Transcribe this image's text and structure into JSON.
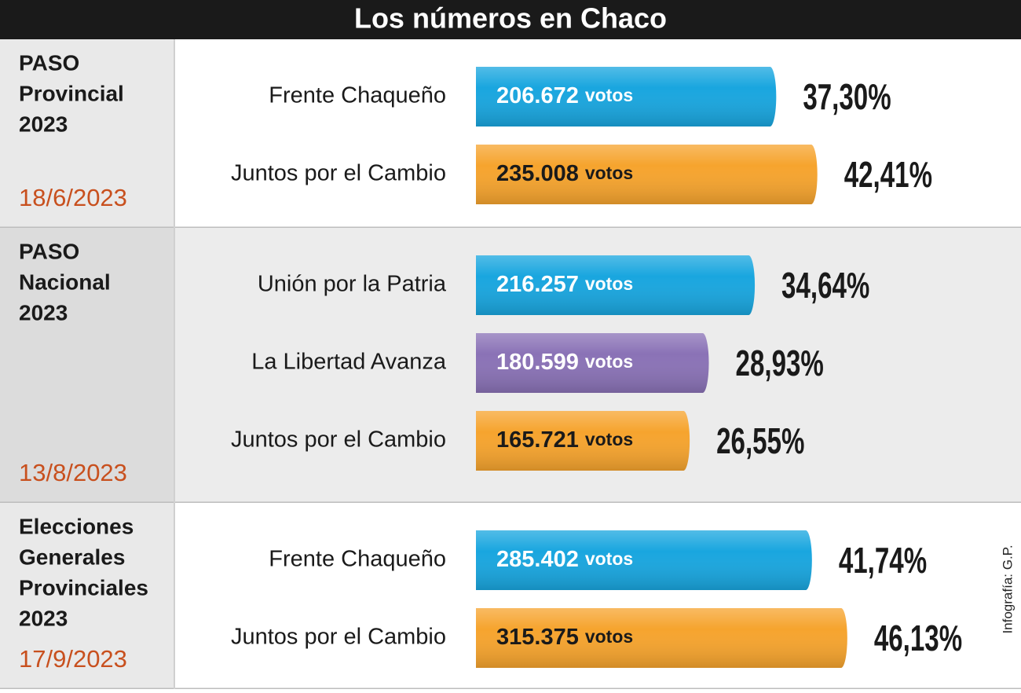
{
  "title": "Los números en Chaco",
  "credit": "Infografía: G.P.",
  "vote_unit": "votos",
  "chart_data": [
    {
      "type": "bar",
      "title": [
        "PASO",
        "Provincial",
        "2023"
      ],
      "subtitle": "18/6/2023",
      "categories": [
        "Frente Chaqueño",
        "Juntos por el Cambio"
      ],
      "values": [
        37.3,
        42.41
      ],
      "value_labels": [
        "37,30%",
        "42,41%"
      ],
      "votes": [
        206672,
        235008
      ],
      "vote_labels": [
        "206.672",
        "235.008"
      ],
      "colors": [
        "#19a6df",
        "#f6a42e"
      ]
    },
    {
      "type": "bar",
      "title": [
        "PASO",
        "Nacional",
        "2023"
      ],
      "subtitle": "13/8/2023",
      "categories": [
        "Unión por la Patria",
        "La Libertad Avanza",
        "Juntos por el Cambio"
      ],
      "values": [
        34.64,
        28.93,
        26.55
      ],
      "value_labels": [
        "34,64%",
        "28,93%",
        "26,55%"
      ],
      "votes": [
        216257,
        180599,
        165721
      ],
      "vote_labels": [
        "216.257",
        "180.599",
        "165.721"
      ],
      "colors": [
        "#19a6df",
        "#8a72b6",
        "#f6a42e"
      ]
    },
    {
      "type": "bar",
      "title": [
        "Elecciones",
        "Generales",
        "Provinciales",
        "2023"
      ],
      "subtitle": "17/9/2023",
      "categories": [
        "Frente Chaqueño",
        "Juntos por el Cambio"
      ],
      "values": [
        41.74,
        46.13
      ],
      "value_labels": [
        "41,74%",
        "46,13%"
      ],
      "votes": [
        285402,
        315375
      ],
      "vote_labels": [
        "285.402",
        "315.375"
      ],
      "colors": [
        "#19a6df",
        "#f6a42e"
      ]
    }
  ]
}
